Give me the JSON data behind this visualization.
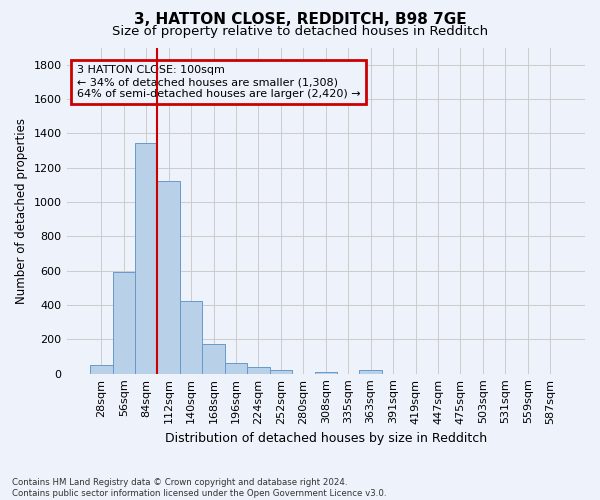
{
  "title": "3, HATTON CLOSE, REDDITCH, B98 7GE",
  "subtitle": "Size of property relative to detached houses in Redditch",
  "xlabel": "Distribution of detached houses by size in Redditch",
  "ylabel": "Number of detached properties",
  "bar_labels": [
    "28sqm",
    "56sqm",
    "84sqm",
    "112sqm",
    "140sqm",
    "168sqm",
    "196sqm",
    "224sqm",
    "252sqm",
    "280sqm",
    "308sqm",
    "335sqm",
    "363sqm",
    "391sqm",
    "419sqm",
    "447sqm",
    "475sqm",
    "503sqm",
    "531sqm",
    "559sqm",
    "587sqm"
  ],
  "bar_values": [
    50,
    595,
    1345,
    1120,
    425,
    170,
    60,
    40,
    20,
    0,
    10,
    0,
    20,
    0,
    0,
    0,
    0,
    0,
    0,
    0,
    0
  ],
  "bar_color": "#b8d0e8",
  "bar_edge_color": "#6699cc",
  "background_color": "#eef2fb",
  "grid_color": "#cccccc",
  "property_line_x": 2.5,
  "property_line_color": "#cc0000",
  "annotation_text": "3 HATTON CLOSE: 100sqm\n← 34% of detached houses are smaller (1,308)\n64% of semi-detached houses are larger (2,420) →",
  "annotation_box_color": "#cc0000",
  "ylim": [
    0,
    1900
  ],
  "yticks": [
    0,
    200,
    400,
    600,
    800,
    1000,
    1200,
    1400,
    1600,
    1800
  ],
  "footnote": "Contains HM Land Registry data © Crown copyright and database right 2024.\nContains public sector information licensed under the Open Government Licence v3.0.",
  "title_fontsize": 11,
  "subtitle_fontsize": 9.5
}
